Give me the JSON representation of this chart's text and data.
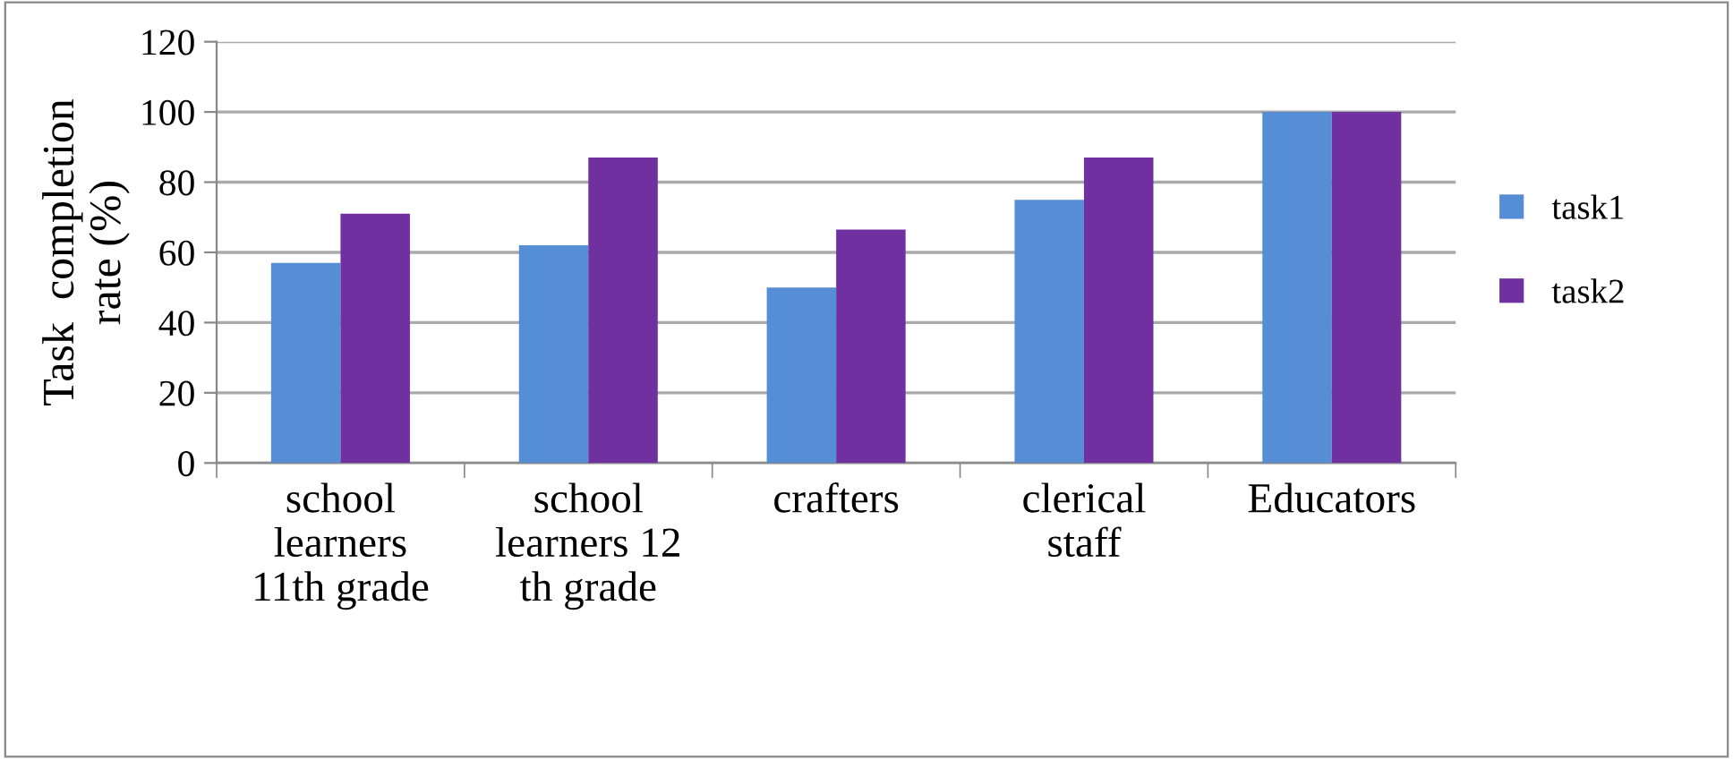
{
  "chart_data": {
    "type": "bar",
    "ylabel": "Task  completion\nrate (%)",
    "categories": [
      "school\nlearners\n11th grade",
      "school\nlearners 12\nth grade",
      "crafters",
      "clerical\nstaff",
      "Educators"
    ],
    "series": [
      {
        "name": "task1",
        "color": "#558ed5",
        "values": [
          57,
          62,
          50,
          75,
          100
        ]
      },
      {
        "name": "task2",
        "color": "#7030a0",
        "values": [
          71,
          87,
          66.5,
          87,
          100
        ]
      }
    ],
    "ylim": [
      0,
      120
    ],
    "yticks": [
      0,
      20,
      40,
      60,
      80,
      100,
      120
    ],
    "grid": "y",
    "legend": "right"
  }
}
